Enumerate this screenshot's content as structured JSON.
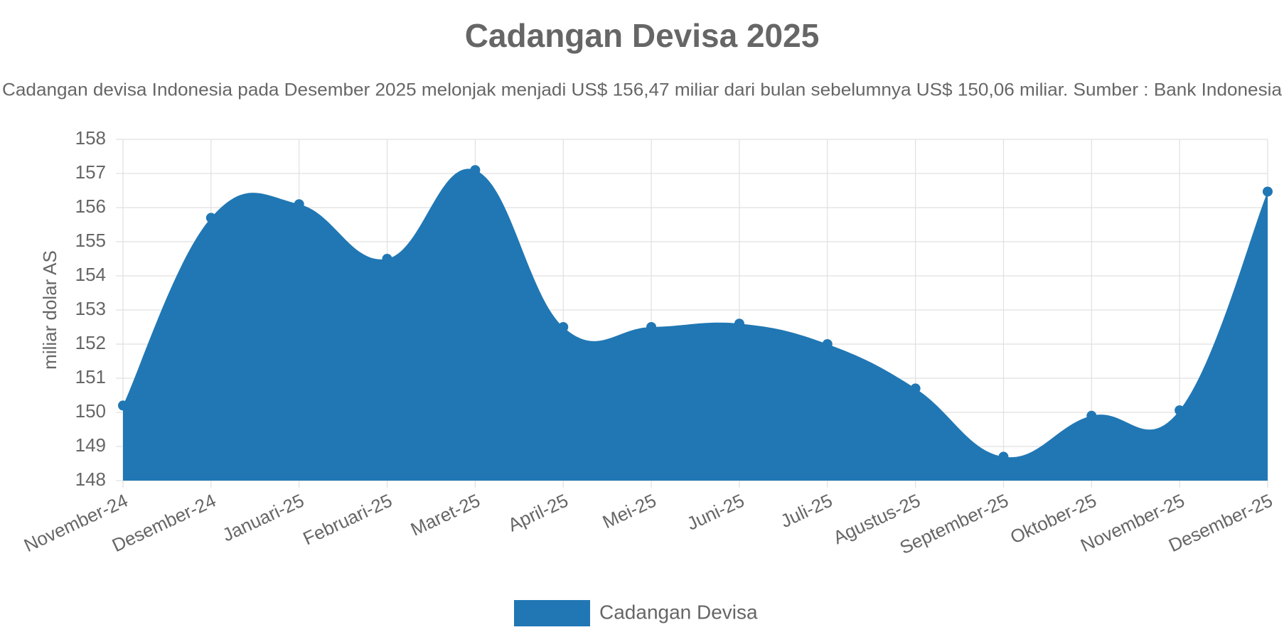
{
  "chart_data": {
    "type": "area",
    "title": "Cadangan Devisa 2025",
    "subtitle": "Cadangan devisa Indonesia pada Desember 2025 melonjak menjadi US$ 156,47 miliar dari bulan sebelumnya US$ 150,06 miliar. Sumber : Bank Indonesia",
    "y_label": "miliar dolar AS",
    "categories": [
      "November-24",
      "Desember-24",
      "Januari-25",
      "Februari-25",
      "Maret-25",
      "April-25",
      "Mei-25",
      "Juni-25",
      "Juli-25",
      "Agustus-25",
      "September-25",
      "Oktober-25",
      "November-25",
      "Desember-25"
    ],
    "series": [
      {
        "name": "Cadangan Devisa",
        "color": "#2077b4",
        "values": [
          150.2,
          155.7,
          156.1,
          154.5,
          157.1,
          152.5,
          152.5,
          152.6,
          152.0,
          150.7,
          148.7,
          149.9,
          150.06,
          156.47
        ]
      }
    ],
    "ylim": [
      148,
      158
    ],
    "yticks": [
      148,
      149,
      150,
      151,
      152,
      153,
      154,
      155,
      156,
      157,
      158
    ],
    "grid": true,
    "legend_position": "bottom"
  }
}
